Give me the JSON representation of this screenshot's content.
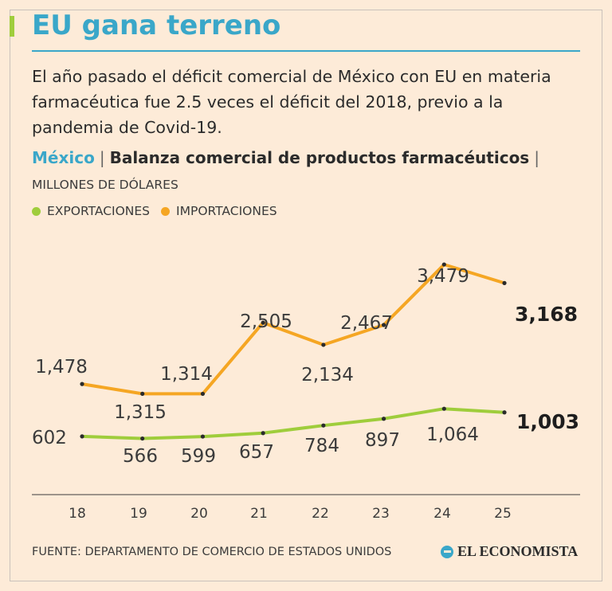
{
  "header": {
    "title": "EU gana terreno",
    "lead": "El año pasado el déficit comercial de México con EU en materia farmacéutica fue 2.5 veces el déficit del 2018, previo a la pandemia de Covid-19."
  },
  "chart_heading": {
    "country": "México",
    "separator": "|",
    "title": "Balanza comercial de productos farmacéuticos",
    "unit": "MILLONES DE DÓLARES"
  },
  "colors": {
    "exports": "#9fcd3c",
    "imports": "#f5a623",
    "accent": "#3aa7c9"
  },
  "chart_data": {
    "type": "line",
    "categories": [
      "18",
      "19",
      "20",
      "21",
      "22",
      "23",
      "24",
      "25"
    ],
    "series": [
      {
        "name": "EXPORTACIONES",
        "values": [
          602,
          566,
          599,
          657,
          784,
          897,
          1064,
          1003
        ],
        "labels": [
          "602",
          "566",
          "599",
          "657",
          "784",
          "897",
          "1,064",
          "1,003"
        ]
      },
      {
        "name": "IMPORTACIONES",
        "values": [
          1478,
          1315,
          1314,
          2505,
          2134,
          2467,
          3479,
          3168
        ],
        "labels": [
          "1,478",
          "1,315",
          "1,314",
          "2,505",
          "2,134",
          "2,467",
          "3,479",
          "3,168"
        ]
      }
    ],
    "legend": "top-left",
    "grid": false
  },
  "footer": {
    "source": "FUENTE: DEPARTAMENTO DE COMERCIO DE ESTADOS UNIDOS",
    "brand": "EL ECONOMISTA"
  }
}
